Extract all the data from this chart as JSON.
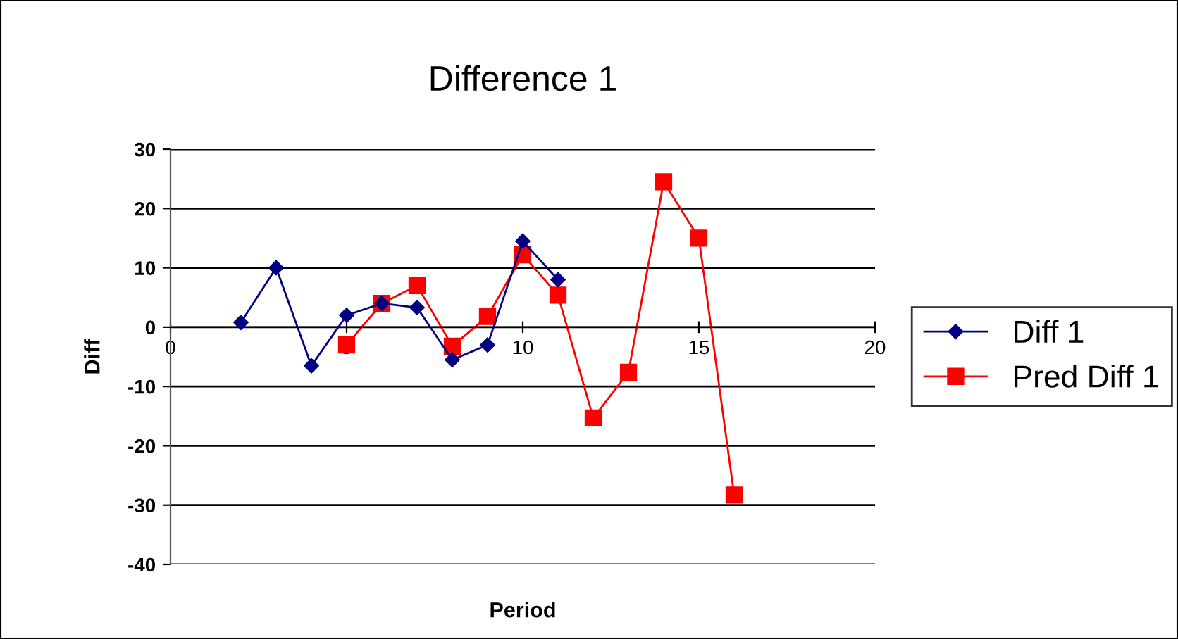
{
  "chart_data": {
    "type": "line",
    "title": "Difference 1",
    "xlabel": "Period",
    "ylabel": "Diff",
    "xlim": [
      0,
      20
    ],
    "xticks": [
      0,
      5,
      10,
      15,
      20
    ],
    "ylim": [
      -40,
      30
    ],
    "yticks": [
      -40,
      -30,
      -20,
      -10,
      0,
      10,
      20,
      30
    ],
    "grid": "y",
    "legend": "right",
    "series": [
      {
        "name": "Diff 1",
        "color": "#000080",
        "marker": "diamond",
        "x": [
          2,
          3,
          4,
          5,
          6,
          7,
          8,
          9,
          10,
          11
        ],
        "values": [
          0.8,
          10,
          -6.5,
          2,
          4,
          3.3,
          -5.5,
          -3,
          14.5,
          8
        ]
      },
      {
        "name": "Pred Diff 1",
        "color": "#ff0000",
        "marker": "square",
        "x": [
          5,
          6,
          7,
          8,
          9,
          10,
          11,
          12,
          13,
          14,
          15,
          16
        ],
        "values": [
          -3,
          4,
          7,
          -3.2,
          1.8,
          12.2,
          5.4,
          -15.3,
          -7.6,
          24.5,
          15,
          -28.3
        ]
      }
    ]
  }
}
